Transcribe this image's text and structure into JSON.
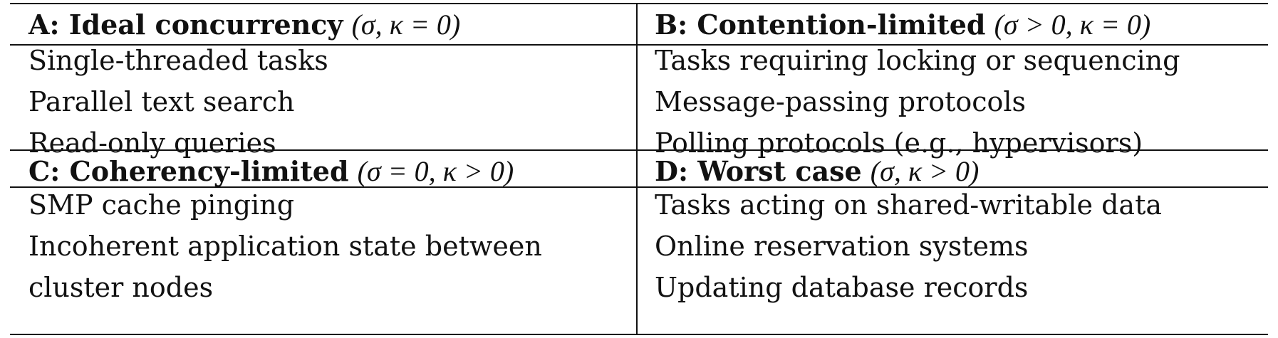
{
  "table": {
    "quadrants": [
      {
        "title": "A: Ideal concurrency",
        "condition": "(σ, κ = 0)",
        "items": [
          "Single-threaded tasks",
          "Parallel text search",
          "Read-only queries"
        ]
      },
      {
        "title": "B: Contention-limited",
        "condition": "(σ > 0, κ = 0)",
        "items": [
          "Tasks requiring locking or sequencing",
          "Message-passing protocols",
          "Polling protocols (e.g., hypervisors)"
        ]
      },
      {
        "title": "C: Coherency-limited",
        "condition": "(σ = 0, κ > 0)",
        "items": [
          "SMP cache pinging",
          "Incoherent application state between",
          "cluster nodes"
        ]
      },
      {
        "title": "D: Worst case",
        "condition": "(σ, κ > 0)",
        "items": [
          "Tasks acting on shared-writable data",
          "Online reservation systems",
          "Updating database records"
        ]
      }
    ]
  }
}
